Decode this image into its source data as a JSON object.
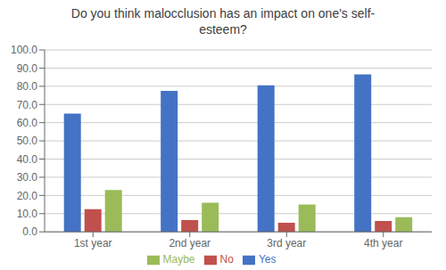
{
  "chart_data": {
    "type": "bar",
    "title": "Do you think malocclusion has an impact on one's self-\nesteem?",
    "categories": [
      "1st year",
      "2nd year",
      "3rd year",
      "4th year"
    ],
    "series": [
      {
        "name": "Yes",
        "color": "#4472C4",
        "values": [
          65.0,
          77.5,
          80.5,
          86.5
        ]
      },
      {
        "name": "No",
        "color": "#C0504D",
        "values": [
          12.5,
          6.5,
          5.0,
          6.0
        ]
      },
      {
        "name": "Maybe",
        "color": "#9BBB59",
        "values": [
          23.0,
          16.0,
          15.0,
          8.0
        ]
      }
    ],
    "ylim": [
      0,
      100
    ],
    "yticks": [
      {
        "value": 0,
        "label": "0.0"
      },
      {
        "value": 10,
        "label": "10.0"
      },
      {
        "value": 20,
        "label": "20.0"
      },
      {
        "value": 30,
        "label": "30.0"
      },
      {
        "value": 40,
        "label": "40.0"
      },
      {
        "value": 50,
        "label": "50.0"
      },
      {
        "value": 60,
        "label": "60.0"
      },
      {
        "value": 70,
        "label": "70.0"
      },
      {
        "value": 80,
        "label": "80.0"
      },
      {
        "value": 90,
        "label": "90.0"
      },
      {
        "value": 100,
        "label": "100.0"
      }
    ],
    "grid": true,
    "legend": "bottom"
  }
}
